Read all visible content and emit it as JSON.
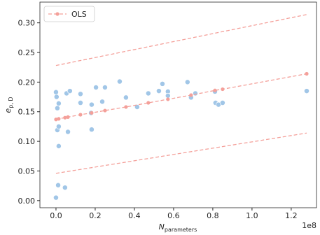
{
  "chart_data": {
    "type": "scatter",
    "xlabel": {
      "main": "N",
      "sub": "parameters"
    },
    "ylabel": {
      "main": "e",
      "sub": "p, D"
    },
    "x_offset_label": "1e8",
    "xlim": [
      -0.082,
      1.329
    ],
    "ylim": [
      -0.012,
      0.335
    ],
    "xticks": [
      {
        "value": 0,
        "label": "0.0"
      },
      {
        "value": 0.2,
        "label": "0.2"
      },
      {
        "value": 0.4,
        "label": "0.4"
      },
      {
        "value": 0.6,
        "label": "0.6"
      },
      {
        "value": 0.8,
        "label": "0.8"
      },
      {
        "value": 1.0,
        "label": "1.0"
      },
      {
        "value": 1.2,
        "label": "1.2"
      }
    ],
    "yticks": [
      {
        "value": 0,
        "label": "0.00"
      },
      {
        "value": 0.05,
        "label": "0.05"
      },
      {
        "value": 0.1,
        "label": "0.10"
      },
      {
        "value": 0.15,
        "label": "0.15"
      },
      {
        "value": 0.2,
        "label": "0.20"
      },
      {
        "value": 0.25,
        "label": "0.25"
      },
      {
        "value": 0.3,
        "label": "0.30"
      }
    ],
    "legend_position": "upper left",
    "points": {
      "color": "#a1c6e7",
      "x": [
        0.0,
        0.0,
        0.003,
        0.007,
        0.007,
        0.014,
        0.011,
        0.014,
        0.014,
        0.046,
        0.054,
        0.061,
        0.071,
        0.125,
        0.125,
        0.179,
        0.182,
        0.182,
        0.204,
        0.236,
        0.25,
        0.325,
        0.357,
        0.414,
        0.471,
        0.525,
        0.543,
        0.571,
        0.571,
        0.671,
        0.689,
        0.711,
        0.811,
        0.814,
        0.829,
        0.85,
        1.279
      ],
      "values": [
        0.005,
        0.183,
        0.175,
        0.156,
        0.119,
        0.164,
        0.026,
        0.092,
        0.125,
        0.022,
        0.181,
        0.116,
        0.185,
        0.18,
        0.165,
        0.148,
        0.12,
        0.162,
        0.191,
        0.167,
        0.191,
        0.201,
        0.174,
        0.158,
        0.181,
        0.185,
        0.197,
        0.184,
        0.177,
        0.2,
        0.174,
        0.181,
        0.184,
        0.165,
        0.162,
        0.165,
        0.185
      ]
    },
    "series": [
      {
        "name": "OLS",
        "color": "#f4a09a",
        "x": [
          0,
          0.014,
          0.046,
          0.061,
          0.125,
          0.182,
          0.25,
          0.357,
          0.471,
          0.571,
          0.689,
          0.811,
          0.85,
          1.279
        ],
        "values": [
          0.137,
          0.138,
          0.14,
          0.141,
          0.145,
          0.148,
          0.152,
          0.158,
          0.165,
          0.171,
          0.178,
          0.186,
          0.188,
          0.214
        ]
      }
    ],
    "bands": [
      {
        "x": [
          0,
          1.279
        ],
        "values": [
          0.228,
          0.314
        ]
      },
      {
        "x": [
          0,
          1.279
        ],
        "values": [
          0.046,
          0.114
        ]
      }
    ]
  }
}
